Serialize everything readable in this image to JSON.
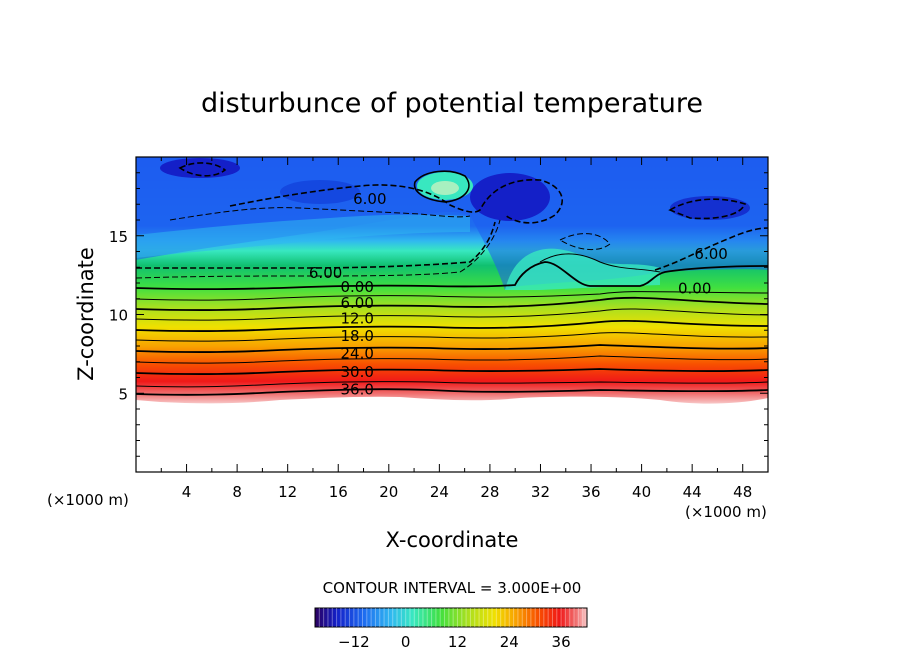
{
  "chart_data": {
    "type": "heatmap",
    "title": "disturbunce of potential temperature",
    "xlabel": "X-coordinate",
    "ylabel": "Z-coordinate",
    "x_unit": "(×1000 m)",
    "y_unit": "(×1000 m)",
    "xlim": [
      0,
      50
    ],
    "ylim": [
      0,
      20
    ],
    "x_ticks": [
      4,
      8,
      12,
      16,
      20,
      24,
      28,
      32,
      36,
      40,
      44,
      48
    ],
    "y_ticks": [
      5,
      10,
      15
    ],
    "contour_interval_text": "CONTOUR INTERVAL = 3.000E+00",
    "contour_labels": [
      {
        "text": "36.0",
        "x": 17.5,
        "z": 5.3
      },
      {
        "text": "30.0",
        "x": 17.5,
        "z": 6.4
      },
      {
        "text": "24.0",
        "x": 17.5,
        "z": 7.6
      },
      {
        "text": "18.0",
        "x": 17.5,
        "z": 8.7
      },
      {
        "text": "12.0",
        "x": 17.5,
        "z": 9.8
      },
      {
        "text": "6.00",
        "x": 17.5,
        "z": 10.8
      },
      {
        "text": "0.00",
        "x": 17.5,
        "z": 11.8
      },
      {
        "text": "6.00",
        "x": 15,
        "z": 12.7
      },
      {
        "text": "6.00",
        "x": 18.5,
        "z": 17.4
      },
      {
        "text": "0.00",
        "x": 44.2,
        "z": 11.7
      },
      {
        "text": "6.00",
        "x": 45.5,
        "z": 13.9
      }
    ],
    "colorbar": {
      "tick_labels": [
        "−12",
        "0",
        "12",
        "24",
        "36"
      ],
      "tick_values": [
        -12,
        0,
        12,
        24,
        36
      ],
      "range": [
        -21,
        42
      ]
    },
    "colormap": [
      "#2b0060",
      "#1420c8",
      "#1e6cf0",
      "#30b8f0",
      "#38e8c0",
      "#40e040",
      "#a8e020",
      "#f0e000",
      "#f8a000",
      "#f85000",
      "#f01818",
      "#f07070",
      "#f8c8c8"
    ]
  }
}
